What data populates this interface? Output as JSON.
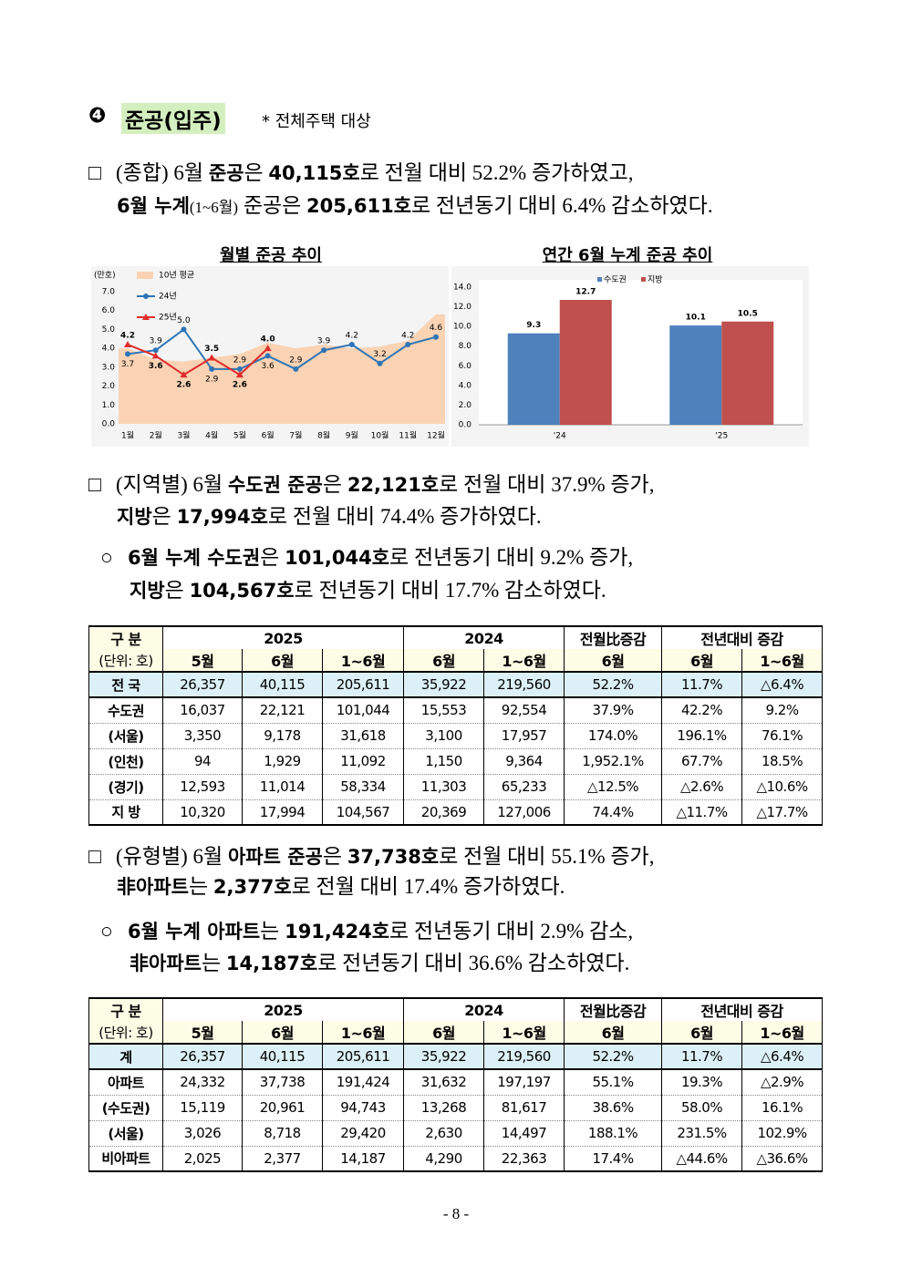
{
  "section": {
    "number": "❹",
    "title": "준공(입주)",
    "note": "* 전체주택 대상"
  },
  "paragraphs": [
    {
      "marker": "□",
      "level": 1,
      "lines": [
        [
          {
            "t": "(종합) 6월 "
          },
          {
            "t": "준공",
            "b": true
          },
          {
            "t": "은 "
          },
          {
            "t": "40,115호",
            "b": true
          },
          {
            "t": "로 전월 대비 52.2% 증가하였고,"
          }
        ],
        [
          {
            "t": "6월 누계",
            "b": true
          },
          {
            "t": "(1~6월)",
            "s": true
          },
          {
            "t": " 준공은 "
          },
          {
            "t": "205,611호",
            "b": true
          },
          {
            "t": "로 전년동기 대비 6.4% 감소하였다."
          }
        ]
      ]
    },
    {
      "marker": "□",
      "level": 1,
      "lines": [
        [
          {
            "t": "(지역별) 6월 "
          },
          {
            "t": "수도권 준공",
            "b": true
          },
          {
            "t": "은 "
          },
          {
            "t": "22,121호",
            "b": true
          },
          {
            "t": "로 전월 대비 37.9% 증가,"
          }
        ],
        [
          {
            "t": "지방",
            "b": true
          },
          {
            "t": "은 "
          },
          {
            "t": "17,994호",
            "b": true
          },
          {
            "t": "로 전월 대비 74.4% 증가하였다."
          }
        ]
      ]
    },
    {
      "marker": "○",
      "level": 2,
      "lines": [
        [
          {
            "t": "6월 누계 수도권",
            "b": true
          },
          {
            "t": "은 "
          },
          {
            "t": "101,044호",
            "b": true
          },
          {
            "t": "로 전년동기 대비 9.2% 증가,"
          }
        ],
        [
          {
            "t": "지방",
            "b": true
          },
          {
            "t": "은 "
          },
          {
            "t": "104,567호",
            "b": true
          },
          {
            "t": "로 전년동기 대비 17.7% 감소하였다."
          }
        ]
      ]
    },
    {
      "marker": "□",
      "level": 1,
      "lines": [
        [
          {
            "t": "(유형별) 6월 "
          },
          {
            "t": "아파트 준공",
            "b": true
          },
          {
            "t": "은 "
          },
          {
            "t": "37,738호",
            "b": true
          },
          {
            "t": "로 전월 대비 55.1% 증가,"
          }
        ],
        [
          {
            "t": "非아파트",
            "b": true
          },
          {
            "t": "는 "
          },
          {
            "t": "2,377호",
            "b": true
          },
          {
            "t": "로 전월 대비 17.4% 증가하였다."
          }
        ]
      ]
    },
    {
      "marker": "○",
      "level": 2,
      "lines": [
        [
          {
            "t": "6월 누계 아파트",
            "b": true
          },
          {
            "t": "는 "
          },
          {
            "t": "191,424호",
            "b": true
          },
          {
            "t": "로 전년동기 대비 2.9% 감소,"
          }
        ],
        [
          {
            "t": "非아파트",
            "b": true
          },
          {
            "t": "는 "
          },
          {
            "t": "14,187호",
            "b": true
          },
          {
            "t": "로 전년동기 대비 36.6% 감소하였다."
          }
        ]
      ]
    }
  ],
  "chart_data": [
    {
      "type": "line",
      "title": "월별 준공 추이",
      "unit": "(만호)",
      "categories": [
        "1월",
        "2월",
        "3월",
        "4월",
        "5월",
        "6월",
        "7월",
        "8월",
        "9월",
        "10월",
        "11월",
        "12월"
      ],
      "ylim": [
        0,
        7
      ],
      "yticks": [
        {
          "value": 0,
          "label": "0.0"
        },
        {
          "value": 1,
          "label": "1.0"
        },
        {
          "value": 2,
          "label": "2.0"
        },
        {
          "value": 3,
          "label": "3.0"
        },
        {
          "value": 4,
          "label": "4.0"
        },
        {
          "value": 5,
          "label": "5.0"
        },
        {
          "value": 6,
          "label": "6.0"
        },
        {
          "value": 7,
          "label": "7.0"
        }
      ],
      "series": [
        {
          "name": "10년 평균",
          "kind": "area",
          "color": "#f9d3b4",
          "values": [
            4.0,
            3.4,
            3.3,
            3.5,
            3.7,
            4.3,
            4.0,
            4.2,
            4.0,
            4.1,
            4.4,
            5.8
          ]
        },
        {
          "name": "24년",
          "color": "#2e75b6",
          "marker": "circle",
          "values": [
            3.7,
            3.9,
            5.0,
            2.9,
            2.9,
            3.6,
            2.9,
            3.9,
            4.2,
            3.2,
            4.2,
            4.6
          ],
          "value_labels": [
            "3.7",
            "3.9",
            "5.0",
            "2.9",
            "2.9",
            "3.6",
            "2.9",
            "3.9",
            "4.2",
            "3.2",
            "4.2",
            "4.6"
          ]
        },
        {
          "name": "25년",
          "color": "#e02b2b",
          "marker": "triangle",
          "values": [
            4.2,
            3.6,
            2.6,
            3.5,
            2.6,
            4.0,
            null,
            null,
            null,
            null,
            null,
            null
          ],
          "value_labels": [
            "4.2",
            "3.6",
            "2.6",
            "3.5",
            "2.6",
            "4.0",
            null,
            null,
            null,
            null,
            null,
            null
          ]
        }
      ]
    },
    {
      "type": "bar",
      "title": "연간 6월 누계 준공 추이",
      "categories": [
        "'24",
        "'25"
      ],
      "ylim": [
        0,
        14
      ],
      "yticks": [
        {
          "value": 0,
          "label": "0.0"
        },
        {
          "value": 2,
          "label": "2.0"
        },
        {
          "value": 4,
          "label": "4.0"
        },
        {
          "value": 6,
          "label": "6.0"
        },
        {
          "value": 8,
          "label": "8.0"
        },
        {
          "value": 10,
          "label": "10.0"
        },
        {
          "value": 12,
          "label": "12.0"
        },
        {
          "value": 14,
          "label": "14.0"
        }
      ],
      "series": [
        {
          "name": "수도권",
          "color": "#4f81bd",
          "values": [
            9.3,
            10.1
          ]
        },
        {
          "name": "지방",
          "color": "#c0504d",
          "values": [
            12.7,
            10.5
          ]
        }
      ]
    }
  ],
  "tables": [
    {
      "corner": [
        "구 분",
        "(단위: 호)"
      ],
      "groups": [
        "2025",
        "2024",
        "전월比증감",
        "전년대비 증감"
      ],
      "columns": [
        "5월",
        "6월",
        "1~6월",
        "6월",
        "1~6월",
        "6월",
        "6월",
        "1~6월"
      ],
      "rows": [
        [
          "전 국",
          "26,357",
          "40,115",
          "205,611",
          "35,922",
          "219,560",
          "52.2%",
          "11.7%",
          "△6.4%"
        ],
        [
          "수도권",
          "16,037",
          "22,121",
          "101,044",
          "15,553",
          "92,554",
          "37.9%",
          "42.2%",
          "9.2%"
        ],
        [
          "(서울)",
          "3,350",
          "9,178",
          "31,618",
          "3,100",
          "17,957",
          "174.0%",
          "196.1%",
          "76.1%"
        ],
        [
          "(인천)",
          "94",
          "1,929",
          "11,092",
          "1,150",
          "9,364",
          "1,952.1%",
          "67.7%",
          "18.5%"
        ],
        [
          "(경기)",
          "12,593",
          "11,014",
          "58,334",
          "11,303",
          "65,233",
          "△12.5%",
          "△2.6%",
          "△10.6%"
        ],
        [
          "지 방",
          "10,320",
          "17,994",
          "104,567",
          "20,369",
          "127,006",
          "74.4%",
          "△11.7%",
          "△17.7%"
        ]
      ]
    },
    {
      "corner": [
        "구 분",
        "(단위: 호)"
      ],
      "groups": [
        "2025",
        "2024",
        "전월比증감",
        "전년대비 증감"
      ],
      "columns": [
        "5월",
        "6월",
        "1~6월",
        "6월",
        "1~6월",
        "6월",
        "6월",
        "1~6월"
      ],
      "rows": [
        [
          "계",
          "26,357",
          "40,115",
          "205,611",
          "35,922",
          "219,560",
          "52.2%",
          "11.7%",
          "△6.4%"
        ],
        [
          "아파트",
          "24,332",
          "37,738",
          "191,424",
          "31,632",
          "197,197",
          "55.1%",
          "19.3%",
          "△2.9%"
        ],
        [
          "(수도권)",
          "15,119",
          "20,961",
          "94,743",
          "13,268",
          "81,617",
          "38.6%",
          "58.0%",
          "16.1%"
        ],
        [
          "(서울)",
          "3,026",
          "8,718",
          "29,420",
          "2,630",
          "14,497",
          "188.1%",
          "231.5%",
          "102.9%"
        ],
        [
          "비아파트",
          "2,025",
          "2,377",
          "14,187",
          "4,290",
          "22,363",
          "17.4%",
          "△44.6%",
          "△36.6%"
        ]
      ]
    }
  ],
  "page_number": "- 8 -"
}
